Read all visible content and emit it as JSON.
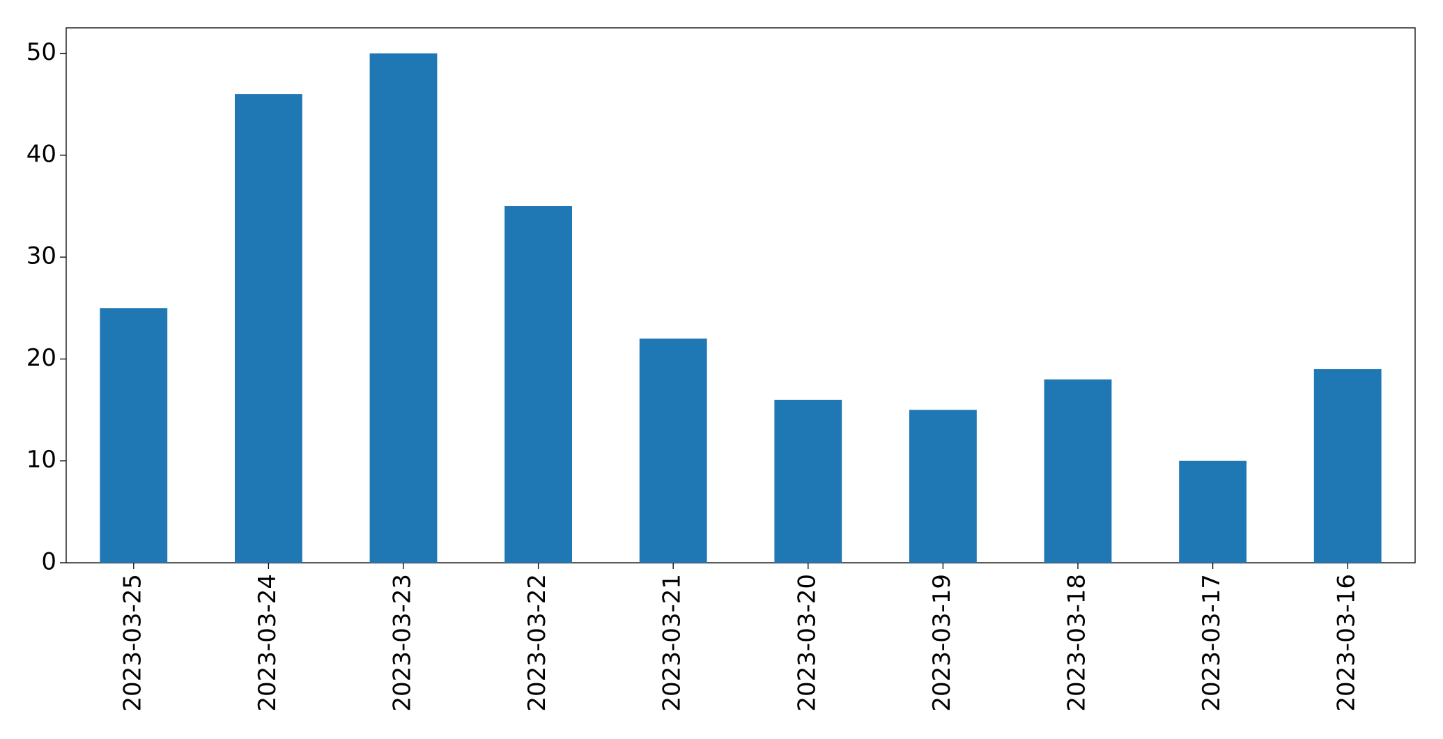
{
  "chart_data": {
    "type": "bar",
    "categories": [
      "2023-03-25",
      "2023-03-24",
      "2023-03-23",
      "2023-03-22",
      "2023-03-21",
      "2023-03-20",
      "2023-03-19",
      "2023-03-18",
      "2023-03-17",
      "2023-03-16"
    ],
    "values": [
      25,
      46,
      50,
      35,
      22,
      16,
      15,
      18,
      10,
      19
    ],
    "color": "#1f77b4",
    "ylim": [
      0,
      52.5
    ],
    "yticks": [
      0,
      10,
      20,
      30,
      40,
      50
    ],
    "grid": false
  }
}
